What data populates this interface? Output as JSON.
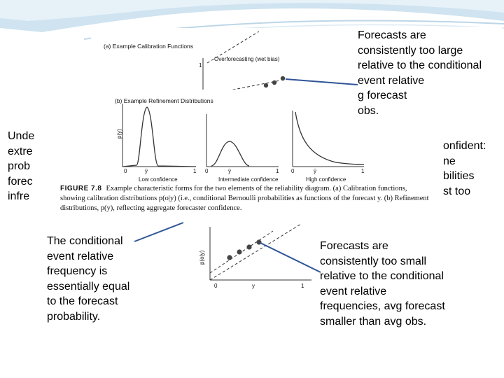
{
  "slide": {
    "callout_top_right": "Forecasts are\nconsistently too large\nrelative to the conditional\nevent relative\ng forecast\nobs.",
    "callout_left_partial": "Unde\nextre\nprob\nforec\ninfre",
    "callout_right_partial": "onfident:\nne\nbilities\nst too",
    "callout_middle_left": "The conditional\nevent relative\nfrequency is\nessentially equal\nto the forecast\nprobability.",
    "callout_bottom_right": "Forecasts are\nconsistently too small\nrelative to the conditional\nevent relative\nfrequencies, avg forecast\nsmaller than avg obs."
  },
  "figure": {
    "panel_a_title": "(a)  Example Calibration Functions",
    "overforecasting_label": "Overforecasting (wet bias)",
    "panel_b_title": "(b)  Example Refinement Distributions",
    "py_label": "p(y)",
    "x_zero": "0",
    "x_one": "1",
    "y_one": "1",
    "x_ybar": "ȳ",
    "x_y": "y",
    "low_confidence": "Low confidence",
    "intermediate_confidence": "Intermediate confidence",
    "high_confidence": "High confidence",
    "lower_y_label": "p(o|y)",
    "caption_label": "FIGURE 7.8",
    "caption_text": "Example characteristic forms for the two elements of the reliability diagram. (a) Calibration functions, showing calibration distributions p(o|y) (i.e., conditional Bernoulli probabilities as functions of the forecast y. (b) Refinement distributions, p(y), reflecting aggregate forecaster confidence."
  },
  "colors": {
    "arrow": "#2f5597",
    "swoosh": "#bcd6e8"
  }
}
